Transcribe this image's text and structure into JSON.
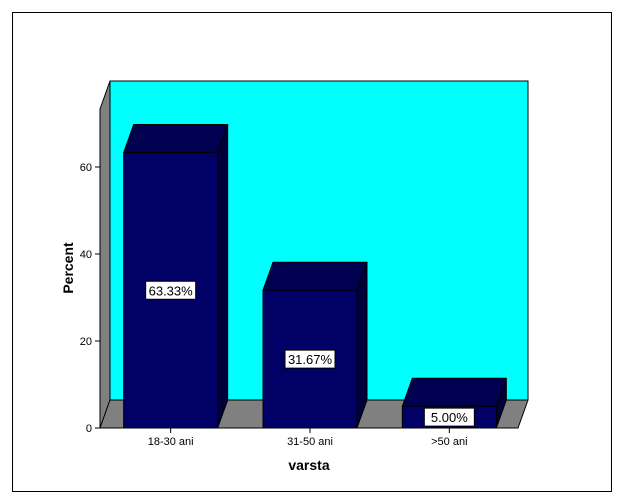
{
  "chart_data": {
    "type": "bar",
    "title": "",
    "xlabel": "varsta",
    "ylabel": "Percent",
    "categories": [
      "18-30 ani",
      "31-50 ani",
      ">50 ani"
    ],
    "values": [
      63.33,
      31.67,
      5.0
    ],
    "data_labels": [
      "63.33%",
      "31.67%",
      "5.00%"
    ],
    "yticks": [
      0,
      20,
      40,
      60
    ],
    "ytick_labels": [
      "0",
      "20",
      "40",
      "60"
    ],
    "ylim": [
      0,
      73
    ],
    "grid": false,
    "legend": "none",
    "style": "3d-bar",
    "colors": {
      "plot_background": "#00ffff",
      "floor": "#808080",
      "side_wall": "#808080",
      "bar_front": "#000066",
      "bar_side": "#00003a",
      "bar_top": "#000050",
      "outline": "#000000",
      "label_box": "#ffffff"
    }
  }
}
